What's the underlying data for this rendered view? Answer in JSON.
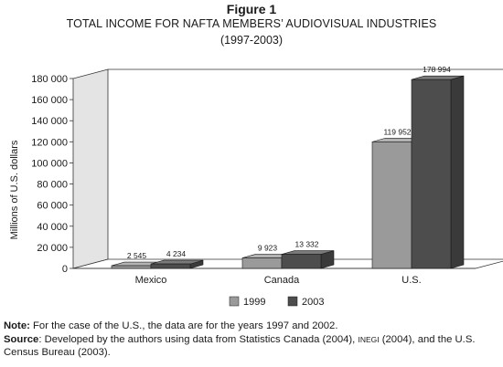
{
  "figure": {
    "label": "Figure 1",
    "title": "TOTAL INCOME FOR NAFTA MEMBERS’ AUDIOVISUAL INDUSTRIES",
    "years": "(1997-2003)"
  },
  "colors": {
    "series_1999_front": "#9a9a9a",
    "series_2003_front": "#4d4d4d",
    "wall": "#e4e4e4",
    "axis": "#333333"
  },
  "chart_data": {
    "type": "bar",
    "categories": [
      "Mexico",
      "Canada",
      "U.S."
    ],
    "series": [
      {
        "name": "1999",
        "values": [
          2545,
          9923,
          119952
        ],
        "labels": [
          "2 545",
          "9 923",
          "119 952"
        ]
      },
      {
        "name": "2003",
        "values": [
          4234,
          13332,
          178994
        ],
        "labels": [
          "4 234",
          "13 332",
          "178 994"
        ]
      }
    ],
    "ylabel": "Millions of U.S. dollars",
    "ylim": [
      0,
      180000
    ],
    "yticks": [
      0,
      20000,
      40000,
      60000,
      80000,
      100000,
      120000,
      140000,
      160000,
      180000
    ],
    "ytick_labels": [
      "0",
      "20 000",
      "40 000",
      "60 000",
      "80 000",
      "100 000",
      "120 000",
      "140 000",
      "160 000",
      "180 000"
    ],
    "legend_placement": "bottom-center",
    "grid": false,
    "style": "3d"
  },
  "note": {
    "note_label": "Note:",
    "note_text": " For the case of the U.S., the data are for the years 1997 and 2002.",
    "source_label": "Source",
    "source_text_1": ": Developed by the authors using data from Statistics Canada (2004), ",
    "source_inegi": "INEGI",
    "source_text_2": " (2004), and the U.S. Census Bureau (2003)."
  }
}
